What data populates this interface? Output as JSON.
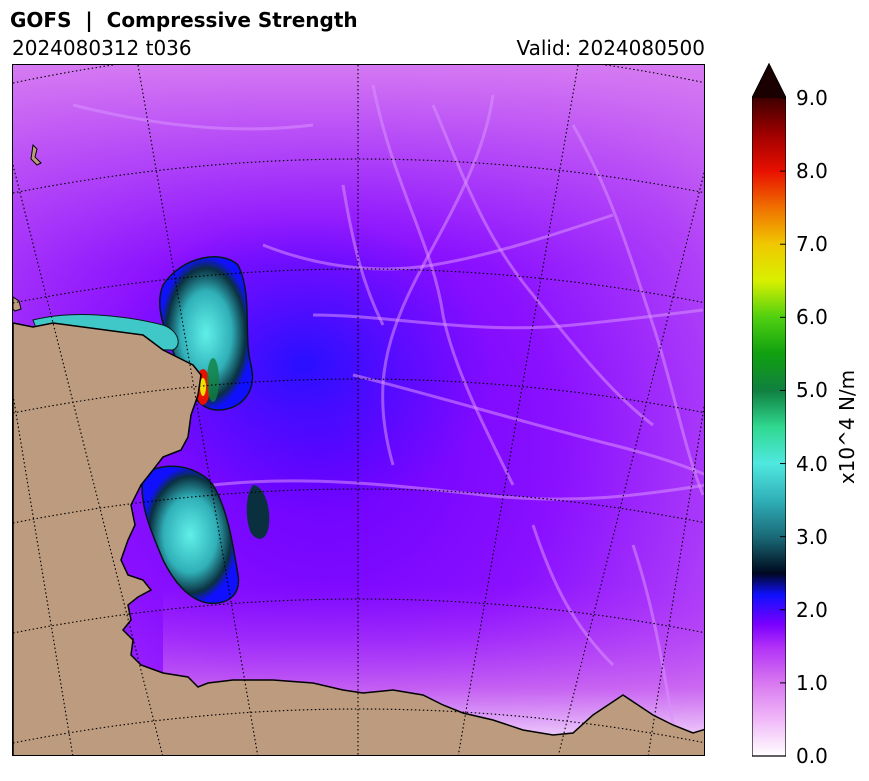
{
  "header": {
    "title": "GOFS  |  Compressive Strength",
    "run": "2024080312 t036",
    "valid": "Valid: 2024080500"
  },
  "colorbar": {
    "label": "x10^4 N/m",
    "min": 0.0,
    "max": 9.0,
    "extend": "max",
    "ticks": [
      "0.0",
      "1.0",
      "2.0",
      "3.0",
      "4.0",
      "5.0",
      "6.0",
      "7.0",
      "8.0",
      "9.0"
    ],
    "colors": [
      {
        "v": 0.0,
        "c": "#ffffff"
      },
      {
        "v": 0.5,
        "c": "#f0b8f8"
      },
      {
        "v": 1.0,
        "c": "#d878f0"
      },
      {
        "v": 1.5,
        "c": "#b030f8"
      },
      {
        "v": 1.8,
        "c": "#7a00ff"
      },
      {
        "v": 2.2,
        "c": "#1010ff"
      },
      {
        "v": 2.5,
        "c": "#000820"
      },
      {
        "v": 2.7,
        "c": "#0a3040"
      },
      {
        "v": 3.0,
        "c": "#1a6a78"
      },
      {
        "v": 3.5,
        "c": "#30b0b8"
      },
      {
        "v": 4.0,
        "c": "#50e8e0"
      },
      {
        "v": 4.5,
        "c": "#30d890"
      },
      {
        "v": 5.0,
        "c": "#108040"
      },
      {
        "v": 5.5,
        "c": "#10a010"
      },
      {
        "v": 6.0,
        "c": "#50d010"
      },
      {
        "v": 6.5,
        "c": "#d8f000"
      },
      {
        "v": 7.0,
        "c": "#f0c800"
      },
      {
        "v": 7.5,
        "c": "#f07000"
      },
      {
        "v": 8.0,
        "c": "#e81000"
      },
      {
        "v": 8.5,
        "c": "#a00000"
      },
      {
        "v": 9.0,
        "c": "#400000"
      },
      {
        "v": 9.5,
        "c": "#1a0000"
      }
    ]
  },
  "map": {
    "land_color": "#bc9b7e",
    "ice_background": "#9a30f8",
    "grid_style": "dotted"
  }
}
